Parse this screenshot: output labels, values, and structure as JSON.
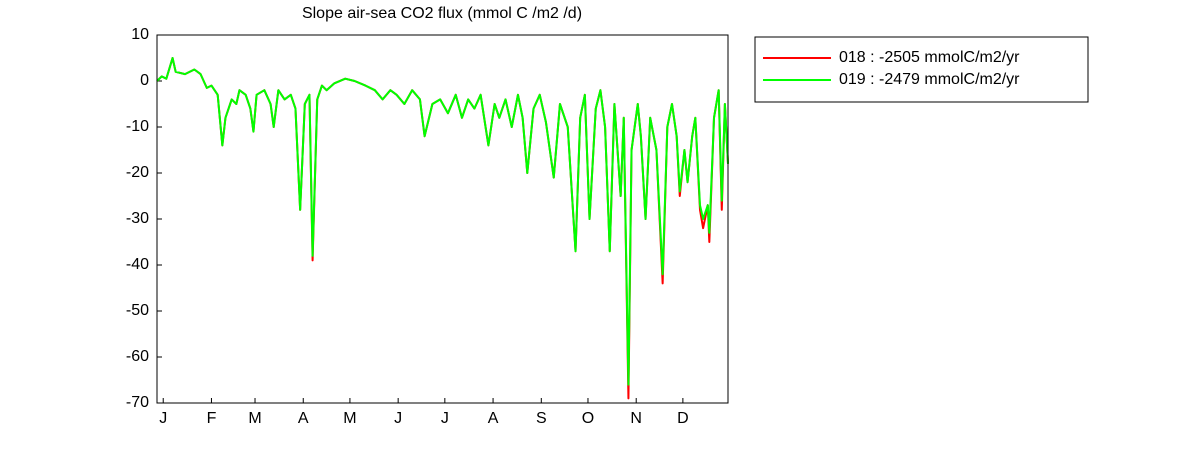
{
  "chart_data": {
    "type": "line",
    "title": "Slope  air-sea CO2 flux (mmol C /m2 /d)",
    "x": [
      -3,
      0,
      3,
      7,
      9,
      15,
      21,
      25,
      29,
      32,
      36,
      39,
      41,
      45,
      48,
      50,
      54,
      57,
      59,
      61,
      66,
      70,
      72,
      75,
      79,
      83,
      86,
      89,
      92,
      95,
      97,
      100,
      103,
      106,
      111,
      118,
      124,
      131,
      137,
      142,
      147,
      151,
      156,
      161,
      166,
      169,
      174,
      179,
      184,
      189,
      193,
      197,
      201,
      205,
      210,
      214,
      217,
      221,
      225,
      229,
      232,
      235,
      239,
      243,
      247,
      252,
      256,
      261,
      266,
      269,
      272,
      275,
      279,
      282,
      285,
      288,
      291,
      295,
      297,
      300,
      302,
      306,
      308,
      311,
      314,
      318,
      322,
      325,
      328,
      331,
      333,
      336,
      338,
      341,
      343,
      346,
      348,
      351,
      352,
      355,
      358,
      360,
      362,
      364
    ],
    "xlim": [
      -3,
      364
    ],
    "xticks": [
      {
        "value": 1,
        "label": "J"
      },
      {
        "value": 32,
        "label": "F"
      },
      {
        "value": 60,
        "label": "M"
      },
      {
        "value": 91,
        "label": "A"
      },
      {
        "value": 121,
        "label": "M"
      },
      {
        "value": 152,
        "label": "J"
      },
      {
        "value": 182,
        "label": "J"
      },
      {
        "value": 213,
        "label": "A"
      },
      {
        "value": 244,
        "label": "S"
      },
      {
        "value": 274,
        "label": "O"
      },
      {
        "value": 305,
        "label": "N"
      },
      {
        "value": 335,
        "label": "D"
      }
    ],
    "ylim": [
      -70,
      10
    ],
    "yticks": [
      10,
      0,
      -10,
      -20,
      -30,
      -40,
      -50,
      -60,
      -70
    ],
    "legend": "outside-upper-right",
    "series": [
      {
        "name": "018 : -2505 mmolC/m2/yr",
        "color": "#ff0000",
        "values": [
          0,
          1,
          0.5,
          5,
          2,
          1.5,
          2.5,
          1.5,
          -1.5,
          -1,
          -3,
          -14,
          -8,
          -4,
          -5,
          -2,
          -3,
          -6,
          -11,
          -3,
          -2,
          -5,
          -10,
          -2,
          -4,
          -3,
          -6,
          -28,
          -5,
          -3,
          -39,
          -4,
          -1,
          -2,
          -0.5,
          0.5,
          0,
          -1,
          -2,
          -4,
          -2,
          -3,
          -5,
          -2,
          -4,
          -12,
          -5,
          -4,
          -7,
          -3,
          -8,
          -4,
          -6,
          -3,
          -14,
          -5,
          -8,
          -4,
          -10,
          -3,
          -8,
          -20,
          -6,
          -3,
          -9,
          -21,
          -5,
          -10,
          -37,
          -8,
          -3,
          -30,
          -6,
          -2,
          -10,
          -37,
          -5,
          -25,
          -8,
          -69,
          -15,
          -5,
          -12,
          -30,
          -8,
          -15,
          -44,
          -10,
          -5,
          -12,
          -25,
          -15,
          -22,
          -12,
          -8,
          -28,
          -32,
          -27,
          -35,
          -8,
          -2,
          -28,
          -5,
          -18
        ]
      },
      {
        "name": "019 : -2479 mmolC/m2/yr",
        "color": "#00ff00",
        "values": [
          0,
          1,
          0.5,
          5,
          2,
          1.5,
          2.5,
          1.5,
          -1.5,
          -1,
          -3,
          -14,
          -8,
          -4,
          -5,
          -2,
          -3,
          -6,
          -11,
          -3,
          -2,
          -5,
          -10,
          -2,
          -4,
          -3,
          -6,
          -28,
          -5,
          -3,
          -38,
          -4,
          -1,
          -2,
          -0.5,
          0.5,
          0,
          -1,
          -2,
          -4,
          -2,
          -3,
          -5,
          -2,
          -4,
          -12,
          -5,
          -4,
          -7,
          -3,
          -8,
          -4,
          -6,
          -3,
          -14,
          -5,
          -8,
          -4,
          -10,
          -3,
          -8,
          -20,
          -6,
          -3,
          -9,
          -21,
          -5,
          -10,
          -37,
          -8,
          -3,
          -30,
          -6,
          -2,
          -10,
          -37,
          -5,
          -25,
          -8,
          -66,
          -15,
          -5,
          -12,
          -30,
          -8,
          -15,
          -42,
          -10,
          -5,
          -12,
          -24,
          -15,
          -22,
          -12,
          -8,
          -27,
          -30,
          -27,
          -33,
          -8,
          -2,
          -26,
          -5,
          -18
        ]
      }
    ]
  }
}
